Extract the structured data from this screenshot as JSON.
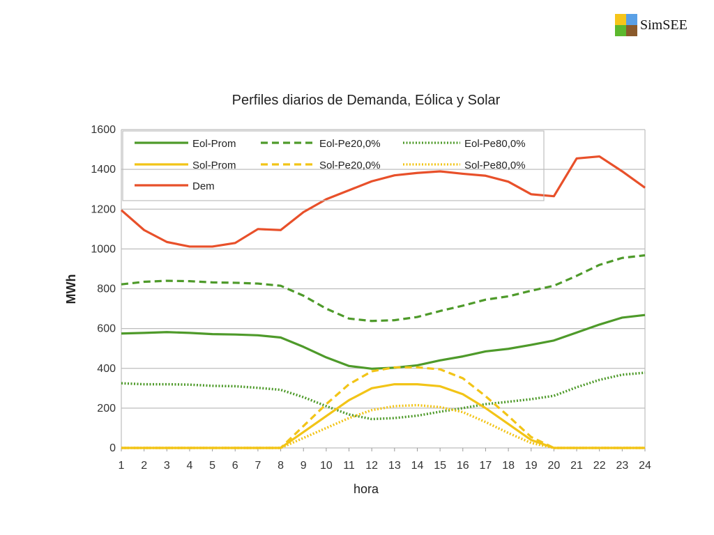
{
  "logo": {
    "text": "SimSEE",
    "colors": [
      "#f6c51a",
      "#5aa0e6",
      "#5cb82d",
      "#8a5a2b"
    ]
  },
  "chart_data": {
    "type": "line",
    "title": "Perfiles diarios de Demanda, Eólica y Solar",
    "xlabel": "hora",
    "ylabel": "MWh",
    "xlim": [
      1,
      24
    ],
    "ylim": [
      0,
      1600
    ],
    "yticks": [
      0,
      200,
      400,
      600,
      800,
      1000,
      1200,
      1400,
      1600
    ],
    "grid": true,
    "legend_position": "top-left",
    "x": [
      1,
      2,
      3,
      4,
      5,
      6,
      7,
      8,
      9,
      10,
      11,
      12,
      13,
      14,
      15,
      16,
      17,
      18,
      19,
      20,
      21,
      22,
      23,
      24
    ],
    "series": [
      {
        "name": "Eol-Prom",
        "color": "#4e9a2a",
        "style": "solid",
        "values": [
          575,
          578,
          582,
          578,
          572,
          570,
          566,
          555,
          508,
          455,
          412,
          398,
          403,
          415,
          440,
          460,
          485,
          498,
          518,
          540,
          580,
          620,
          655,
          668
        ]
      },
      {
        "name": "Eol-Pe20,0%",
        "color": "#4e9a2a",
        "style": "dashed",
        "values": [
          822,
          835,
          840,
          838,
          832,
          830,
          826,
          815,
          765,
          700,
          650,
          638,
          642,
          658,
          688,
          715,
          745,
          762,
          790,
          815,
          865,
          920,
          955,
          968
        ]
      },
      {
        "name": "Eol-Pe80,0%",
        "color": "#4e9a2a",
        "style": "dotted",
        "values": [
          325,
          320,
          320,
          318,
          312,
          310,
          302,
          292,
          255,
          210,
          168,
          145,
          150,
          162,
          182,
          200,
          220,
          232,
          245,
          262,
          305,
          342,
          368,
          378
        ]
      },
      {
        "name": "Sol-Prom",
        "color": "#f2c417",
        "style": "solid",
        "values": [
          0,
          0,
          0,
          0,
          0,
          0,
          0,
          0,
          80,
          160,
          240,
          300,
          320,
          320,
          310,
          270,
          200,
          120,
          40,
          0,
          0,
          0,
          0,
          0
        ]
      },
      {
        "name": "Sol-Pe20,0%",
        "color": "#f2c417",
        "style": "dashed",
        "values": [
          0,
          0,
          0,
          0,
          0,
          0,
          0,
          0,
          110,
          220,
          320,
          385,
          405,
          405,
          395,
          350,
          260,
          160,
          55,
          0,
          0,
          0,
          0,
          0
        ]
      },
      {
        "name": "Sol-Pe80,0%",
        "color": "#f2c417",
        "style": "dotted",
        "values": [
          0,
          0,
          0,
          0,
          0,
          0,
          0,
          0,
          50,
          100,
          150,
          190,
          210,
          215,
          205,
          180,
          130,
          75,
          25,
          0,
          0,
          0,
          0,
          0
        ]
      },
      {
        "name": "Dem",
        "color": "#e8502a",
        "style": "solid",
        "values": [
          1195,
          1095,
          1035,
          1012,
          1012,
          1030,
          1100,
          1095,
          1185,
          1250,
          1295,
          1340,
          1370,
          1382,
          1390,
          1378,
          1368,
          1338,
          1275,
          1265,
          1455,
          1465,
          1390,
          1308
        ]
      }
    ]
  }
}
